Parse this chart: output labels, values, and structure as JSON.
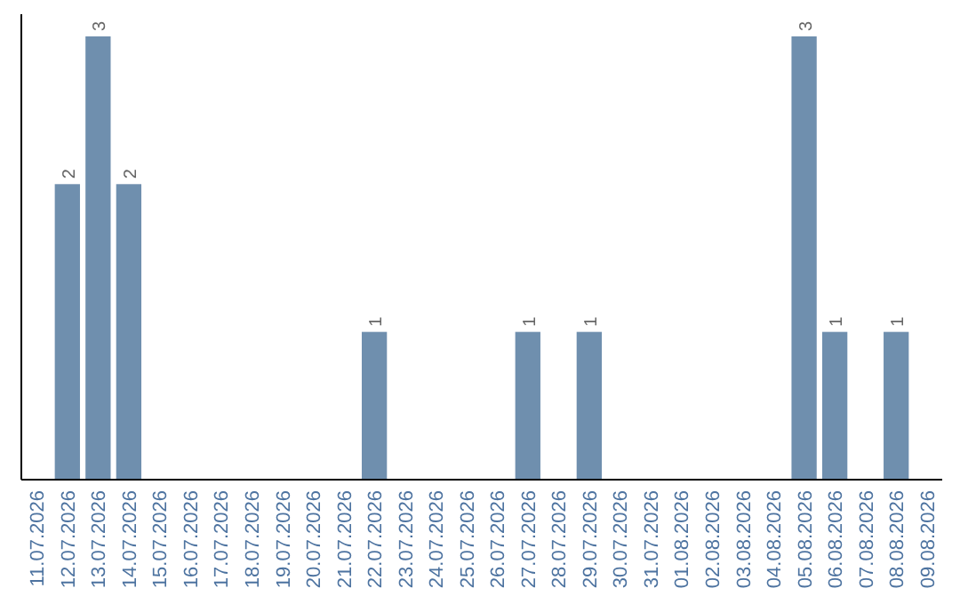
{
  "chart_data": {
    "type": "bar",
    "categories": [
      "11.07.2026",
      "12.07.2026",
      "13.07.2026",
      "14.07.2026",
      "15.07.2026",
      "16.07.2026",
      "17.07.2026",
      "18.07.2026",
      "19.07.2026",
      "20.07.2026",
      "21.07.2026",
      "22.07.2026",
      "23.07.2026",
      "24.07.2026",
      "25.07.2026",
      "26.07.2026",
      "27.07.2026",
      "28.07.2026",
      "29.07.2026",
      "30.07.2026",
      "31.07.2026",
      "01.08.2026",
      "02.08.2026",
      "03.08.2026",
      "04.08.2026",
      "05.08.2026",
      "06.08.2026",
      "07.08.2026",
      "08.08.2026",
      "09.08.2026"
    ],
    "values": [
      0,
      2,
      3,
      2,
      0,
      0,
      0,
      0,
      0,
      0,
      0,
      1,
      0,
      0,
      0,
      0,
      1,
      0,
      1,
      0,
      0,
      0,
      0,
      0,
      0,
      3,
      1,
      0,
      1,
      0
    ],
    "value_labels": [
      null,
      "2",
      "3",
      "2",
      null,
      null,
      null,
      null,
      null,
      null,
      null,
      "1",
      null,
      null,
      null,
      null,
      "1",
      null,
      "1",
      null,
      null,
      null,
      null,
      null,
      null,
      "3",
      "1",
      null,
      "1",
      null
    ],
    "color": "#6f8fae",
    "ylim": [
      0,
      3.15
    ],
    "tick_labels": "x"
  }
}
